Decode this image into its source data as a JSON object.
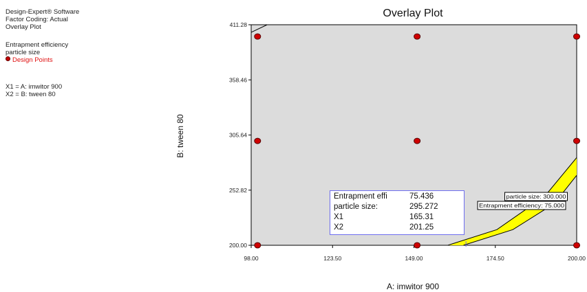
{
  "sidebar": {
    "software": "Design-Expert® Software",
    "factor_coding": "Factor Coding: Actual",
    "plot_name": "Overlay Plot",
    "responses": [
      "Entrapment efficiency",
      "particle size"
    ],
    "design_points_label": "Design Points",
    "factors": [
      "X1 = A: imwitor 900",
      "X2 = B: tween 80"
    ]
  },
  "info_box": {
    "rows": [
      {
        "name": "Entrapment effi",
        "value": "75.436"
      },
      {
        "name": "particle size:",
        "value": "295.272"
      },
      {
        "name": "X1",
        "value": "165.31"
      },
      {
        "name": "X2",
        "value": "201.25"
      }
    ]
  },
  "contour_labels": {
    "particle_size": "particle size: 300.000",
    "entrapment": "Entrapment efficiency: 75.000"
  },
  "colors": {
    "plot_bg": "#dcdcdc",
    "design_point": "#d00000",
    "feasible_region": "#ffff00",
    "info_border": "#6d6df0"
  },
  "chart_data": {
    "type": "scatter",
    "title": "Overlay Plot",
    "xlabel": "A: imwitor 900",
    "ylabel": "B: tween 80",
    "xlim": [
      98.0,
      200.0
    ],
    "ylim": [
      200.0,
      411.28
    ],
    "x_ticks": [
      "98.00",
      "123.50",
      "149.00",
      "174.50",
      "200.00"
    ],
    "y_ticks": [
      "200.00",
      "252.82",
      "305.64",
      "358.46",
      "411.28"
    ],
    "design_points": [
      {
        "x": 100.0,
        "y": 400.0
      },
      {
        "x": 150.0,
        "y": 400.0
      },
      {
        "x": 200.0,
        "y": 400.0
      },
      {
        "x": 100.0,
        "y": 300.0
      },
      {
        "x": 150.0,
        "y": 300.0
      },
      {
        "x": 200.0,
        "y": 300.0
      },
      {
        "x": 100.0,
        "y": 200.0
      },
      {
        "x": 150.0,
        "y": 200.0
      },
      {
        "x": 200.0,
        "y": 200.0
      }
    ],
    "flag_point": {
      "x": 165.31,
      "y": 201.25
    },
    "contours": [
      {
        "name": "particle size: 300.000",
        "points": [
          [
            159.6,
            200.0
          ],
          [
            175.0,
            215.0
          ],
          [
            190.0,
            247.0
          ],
          [
            200.0,
            284.0
          ]
        ]
      },
      {
        "name": "Entrapment efficiency: 75.000",
        "points": [
          [
            164.5,
            200.0
          ],
          [
            180.0,
            215.0
          ],
          [
            193.0,
            240.0
          ],
          [
            200.0,
            267.0
          ]
        ]
      }
    ],
    "top_left_contour": {
      "points": [
        [
          98.0,
          404.0
        ],
        [
          103.0,
          411.28
        ]
      ]
    }
  }
}
